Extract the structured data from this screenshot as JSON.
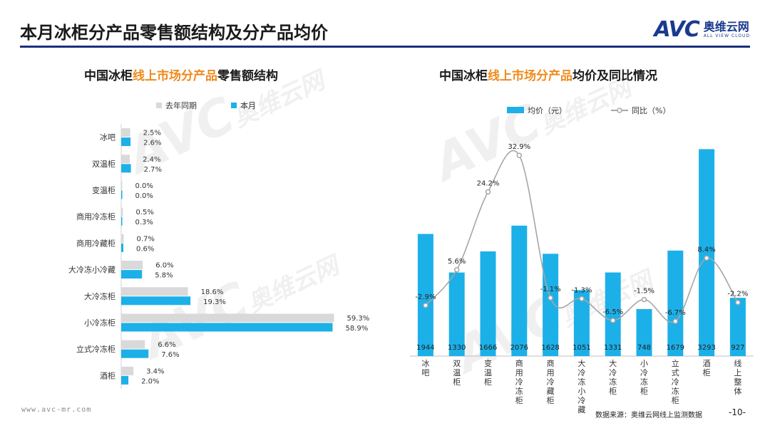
{
  "page": {
    "title": "本月冰柜分产品零售额结构及分产品均价",
    "logo_mark": "AVC",
    "logo_cn": "奥维云网",
    "logo_en": "ALL VIEW CLOUD",
    "footer_url": "www.avc-mr.com",
    "footer_source": "数据来源：奥维云网线上监测数据",
    "page_number": "-10-"
  },
  "colors": {
    "current": "#1cb0e8",
    "last_year": "#d9d9d9",
    "line": "#a6a6a6",
    "highlight": "#f08a1c",
    "rule": "#1a2f7a"
  },
  "watermark": {
    "text": "AVC",
    "cn": "奥维云网",
    "en": "ALL VIEW CLOUD"
  },
  "chart_data": [
    {
      "type": "bar",
      "orientation": "horizontal",
      "title_prefix": "中国冰柜",
      "title_highlight": "线上市场分产品",
      "title_suffix": "零售额结构",
      "legend_position": "top",
      "categories": [
        "冰吧",
        "双温柜",
        "变温柜",
        "商用冷冻柜",
        "商用冷藏柜",
        "大冷冻小冷藏",
        "大冷冻柜",
        "小冷冻柜",
        "立式冷冻柜",
        "酒柜"
      ],
      "series": [
        {
          "name": "去年同期",
          "values": [
            2.5,
            2.4,
            0.0,
            0.5,
            0.7,
            6.0,
            18.6,
            59.3,
            6.6,
            3.4
          ],
          "labels": [
            "2.5%",
            "2.4%",
            "0.0%",
            "0.5%",
            "0.7%",
            "6.0%",
            "18.6%",
            "59.3%",
            "6.6%",
            "3.4%"
          ]
        },
        {
          "name": "本月",
          "values": [
            2.6,
            2.7,
            0.0,
            0.3,
            0.6,
            5.8,
            19.3,
            58.9,
            7.6,
            2.0
          ],
          "labels": [
            "2.6%",
            "2.7%",
            "0.0%",
            "0.3%",
            "0.6%",
            "5.8%",
            "19.3%",
            "58.9%",
            "7.6%",
            "2.0%"
          ]
        }
      ],
      "xlim": [
        0,
        60
      ]
    },
    {
      "type": "bar+line",
      "title_prefix": "中国冰柜",
      "title_highlight": "线上市场分产品",
      "title_suffix": "均价及同比情况",
      "legend_position": "top",
      "categories": [
        "冰吧",
        "双温柜",
        "变温柜",
        "商用冷冻柜",
        "商用冷藏柜",
        "大冷冻小冷藏",
        "大冷冻柜",
        "小冷冻柜",
        "立式冷冻柜",
        "酒柜",
        "线上整体"
      ],
      "bar_series": {
        "name": "均价（元）",
        "values": [
          1944,
          1330,
          1666,
          2076,
          1628,
          1051,
          1331,
          748,
          1679,
          3293,
          927
        ],
        "labels": [
          "1944",
          "1330",
          "1666",
          "2076",
          "1628",
          "1051",
          "1331",
          "748",
          "1679",
          "3293",
          "927"
        ]
      },
      "line_series": {
        "name": "同比（%）",
        "values": [
          -2.9,
          5.6,
          24.2,
          32.9,
          -1.1,
          -1.3,
          -6.5,
          -1.5,
          -6.7,
          8.4,
          -2.2
        ],
        "labels": [
          "-2.9%",
          "5.6%",
          "24.2%",
          "32.9%",
          "-1.1%",
          "-1.3%",
          "-6.5%",
          "-1.5%",
          "-6.7%",
          "8.4%",
          "-2.2%"
        ]
      },
      "bar_ylim": [
        0,
        3400
      ],
      "line_ylim": [
        -15,
        36
      ]
    }
  ]
}
